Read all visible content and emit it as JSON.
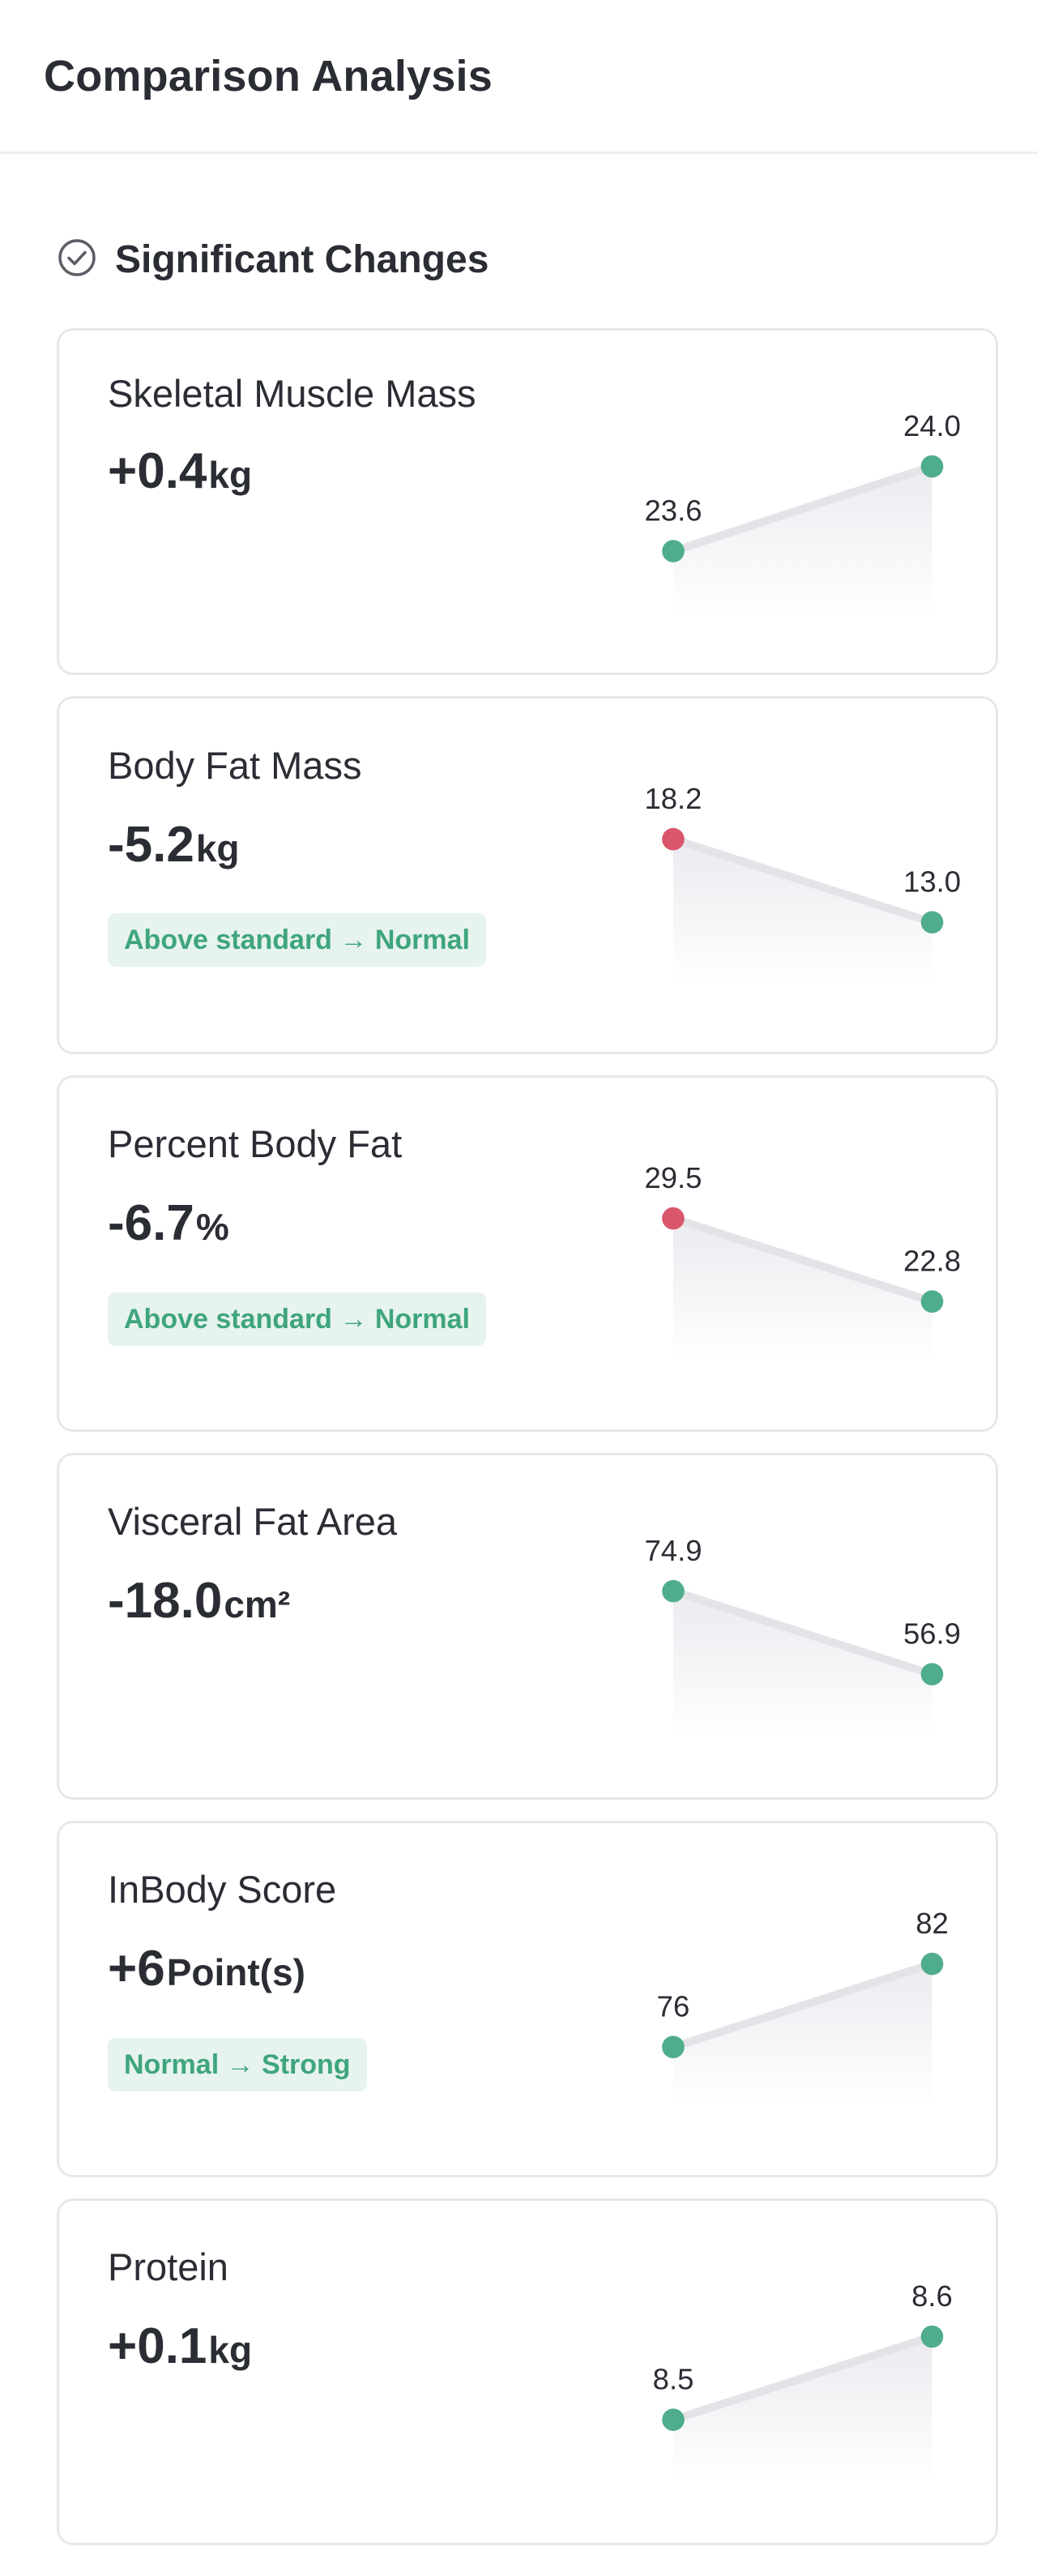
{
  "header": {
    "title": "Comparison Analysis"
  },
  "section": {
    "title": "Significant Changes",
    "icon": "check-circle-icon"
  },
  "colors": {
    "good": "#4fad8b",
    "bad": "#d9566b",
    "line": "#e3e3e8"
  },
  "cards": [
    {
      "label": "Skeletal Muscle Mass",
      "value": "+0.4",
      "unit": "kg",
      "badge": "",
      "chart": {
        "before": 23.6,
        "after": 24.0,
        "before_label": "23.6",
        "after_label": "24.0",
        "before_status": "good",
        "after_status": "good"
      }
    },
    {
      "label": "Body Fat Mass",
      "value": "-5.2",
      "unit": "kg",
      "badge": "Above standard → Normal",
      "chart": {
        "before": 18.2,
        "after": 13.0,
        "before_label": "18.2",
        "after_label": "13.0",
        "before_status": "bad",
        "after_status": "good"
      }
    },
    {
      "label": "Percent Body Fat",
      "value": "-6.7",
      "unit": "%",
      "badge": "Above standard → Normal",
      "chart": {
        "before": 29.5,
        "after": 22.8,
        "before_label": "29.5",
        "after_label": "22.8",
        "before_status": "bad",
        "after_status": "good"
      }
    },
    {
      "label": "Visceral Fat Area",
      "value": "-18.0",
      "unit": "cm²",
      "badge": "",
      "chart": {
        "before": 74.9,
        "after": 56.9,
        "before_label": "74.9",
        "after_label": "56.9",
        "before_status": "good",
        "after_status": "good"
      }
    },
    {
      "label": "InBody Score",
      "value": "+6",
      "unit": "Point(s)",
      "badge": "Normal → Strong",
      "chart": {
        "before": 76,
        "after": 82,
        "before_label": "76",
        "after_label": "82",
        "before_status": "good",
        "after_status": "good"
      }
    },
    {
      "label": "Protein",
      "value": "+0.1",
      "unit": "kg",
      "badge": "",
      "chart": {
        "before": 8.5,
        "after": 8.6,
        "before_label": "8.5",
        "after_label": "8.6",
        "before_status": "good",
        "after_status": "good"
      }
    }
  ]
}
